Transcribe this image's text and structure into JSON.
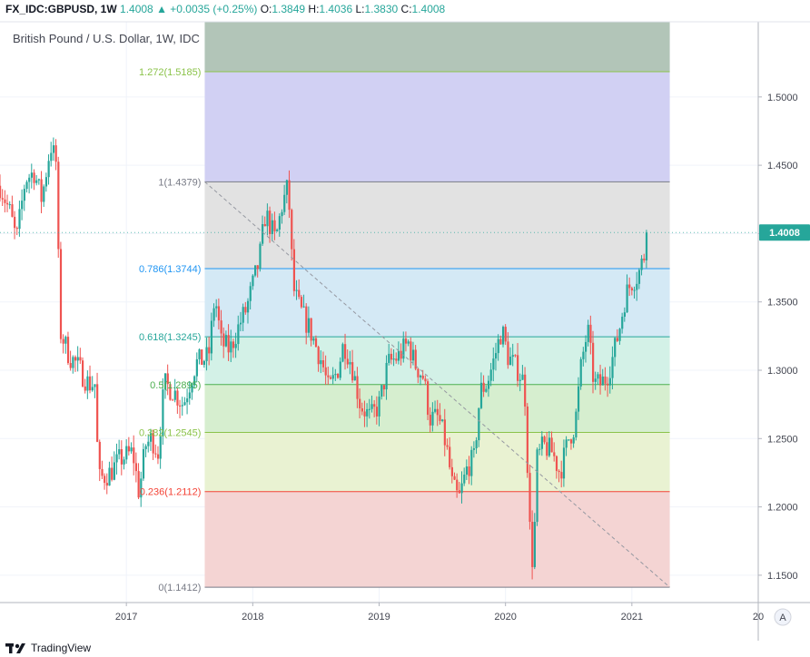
{
  "header": {
    "symbol": "FX_IDC:GBPUSD, 1W",
    "last": "1.4008",
    "change": "▲ +0.0035 (+0.25%)",
    "open_label": "O:",
    "open": "1.3849",
    "high_label": "H:",
    "high": "1.4036",
    "low_label": "L:",
    "low": "1.3830",
    "close_label": "C:",
    "close": "1.4008"
  },
  "brand": {
    "name": "TradingView",
    "icon": "tradingview-logo-icon"
  },
  "chart_data": {
    "type": "candlestick",
    "title": "British Pound / U.S. Dollar, 1W, IDC",
    "ylim": [
      1.13,
      1.555
    ],
    "yticks": [
      "1.1500",
      "1.2000",
      "1.2500",
      "1.3000",
      "1.3500",
      "1.4000",
      "1.4500",
      "1.5000"
    ],
    "xticks": [
      "2017",
      "2018",
      "2019",
      "2020",
      "2021",
      "20"
    ],
    "xlim": [
      2016.0,
      2022.0
    ],
    "grid": true,
    "last_price_label": "1.4008",
    "last_price": 1.4008,
    "axis_button": "A",
    "colors": {
      "up": "#26a69a",
      "down": "#ef5350",
      "last": "#26a69a"
    },
    "fib": {
      "x_start": 2017.62,
      "x_end": 2021.3,
      "trend_from": {
        "x": 2017.62,
        "y": 1.4379
      },
      "trend_to": {
        "x": 2021.3,
        "y": 1.1412
      },
      "top": 1.555,
      "levels": [
        {
          "label": "1.272(1.5185)",
          "value": 1.5185,
          "color": "#8bc34a"
        },
        {
          "label": "1(1.4379)",
          "value": 1.4379,
          "color": "#787b86"
        },
        {
          "label": "0.786(1.3744)",
          "value": 1.3744,
          "color": "#2196f3"
        },
        {
          "label": "0.618(1.3245)",
          "value": 1.3245,
          "color": "#26a69a"
        },
        {
          "label": "0.5(1.2895)",
          "value": 1.2895,
          "color": "#4caf50"
        },
        {
          "label": "0.382(1.2545)",
          "value": 1.2545,
          "color": "#8bc34a"
        },
        {
          "label": "0.236(1.2112)",
          "value": 1.2112,
          "color": "#f44336"
        },
        {
          "label": "0(1.1412)",
          "value": 1.1412,
          "color": "#787b86"
        }
      ],
      "bands": [
        {
          "from": 1.5185,
          "to": 1.555,
          "color": "#b2c5b8"
        },
        {
          "from": 1.4379,
          "to": 1.5185,
          "color": "#d1d0f3"
        },
        {
          "from": 1.3744,
          "to": 1.4379,
          "color": "#e2e2e2"
        },
        {
          "from": 1.3245,
          "to": 1.3744,
          "color": "#d4e9f5"
        },
        {
          "from": 1.2895,
          "to": 1.3245,
          "color": "#d3f1e7"
        },
        {
          "from": 1.2545,
          "to": 1.2895,
          "color": "#d6eecf"
        },
        {
          "from": 1.2112,
          "to": 1.2545,
          "color": "#e9f2d2"
        },
        {
          "from": 1.1412,
          "to": 1.2112,
          "color": "#f4d4d3"
        }
      ]
    },
    "ohlc_anchors": [
      [
        2016.0,
        1.435
      ],
      [
        2016.08,
        1.415
      ],
      [
        2016.13,
        1.395
      ],
      [
        2016.2,
        1.44
      ],
      [
        2016.27,
        1.445
      ],
      [
        2016.33,
        1.425
      ],
      [
        2016.4,
        1.465
      ],
      [
        2016.45,
        1.45
      ],
      [
        2016.47,
        1.33
      ],
      [
        2016.55,
        1.31
      ],
      [
        2016.6,
        1.305
      ],
      [
        2016.7,
        1.29
      ],
      [
        2016.75,
        1.29
      ],
      [
        2016.78,
        1.22
      ],
      [
        2016.87,
        1.225
      ],
      [
        2016.95,
        1.235
      ],
      [
        2017.05,
        1.24
      ],
      [
        2017.1,
        1.21
      ],
      [
        2017.15,
        1.245
      ],
      [
        2017.2,
        1.25
      ],
      [
        2017.25,
        1.24
      ],
      [
        2017.3,
        1.29
      ],
      [
        2017.37,
        1.285
      ],
      [
        2017.45,
        1.275
      ],
      [
        2017.55,
        1.305
      ],
      [
        2017.65,
        1.31
      ],
      [
        2017.7,
        1.355
      ],
      [
        2017.75,
        1.32
      ],
      [
        2017.82,
        1.315
      ],
      [
        2017.9,
        1.335
      ],
      [
        2017.95,
        1.345
      ],
      [
        2018.05,
        1.38
      ],
      [
        2018.1,
        1.415
      ],
      [
        2018.18,
        1.395
      ],
      [
        2018.23,
        1.42
      ],
      [
        2018.28,
        1.435
      ],
      [
        2018.32,
        1.36
      ],
      [
        2018.37,
        1.345
      ],
      [
        2018.45,
        1.33
      ],
      [
        2018.55,
        1.305
      ],
      [
        2018.6,
        1.285
      ],
      [
        2018.67,
        1.3
      ],
      [
        2018.72,
        1.32
      ],
      [
        2018.78,
        1.305
      ],
      [
        2018.85,
        1.275
      ],
      [
        2018.93,
        1.265
      ],
      [
        2019.0,
        1.275
      ],
      [
        2019.07,
        1.305
      ],
      [
        2019.15,
        1.31
      ],
      [
        2019.23,
        1.32
      ],
      [
        2019.28,
        1.305
      ],
      [
        2019.35,
        1.295
      ],
      [
        2019.4,
        1.265
      ],
      [
        2019.47,
        1.265
      ],
      [
        2019.53,
        1.245
      ],
      [
        2019.58,
        1.215
      ],
      [
        2019.63,
        1.205
      ],
      [
        2019.7,
        1.23
      ],
      [
        2019.75,
        1.235
      ],
      [
        2019.8,
        1.285
      ],
      [
        2019.85,
        1.29
      ],
      [
        2019.9,
        1.305
      ],
      [
        2019.97,
        1.33
      ],
      [
        2020.02,
        1.31
      ],
      [
        2020.1,
        1.3
      ],
      [
        2020.15,
        1.29
      ],
      [
        2020.2,
        1.165
      ],
      [
        2020.22,
        1.16
      ],
      [
        2020.25,
        1.235
      ],
      [
        2020.3,
        1.245
      ],
      [
        2020.37,
        1.24
      ],
      [
        2020.43,
        1.225
      ],
      [
        2020.5,
        1.25
      ],
      [
        2020.55,
        1.26
      ],
      [
        2020.6,
        1.305
      ],
      [
        2020.65,
        1.33
      ],
      [
        2020.7,
        1.29
      ],
      [
        2020.75,
        1.29
      ],
      [
        2020.8,
        1.295
      ],
      [
        2020.85,
        1.31
      ],
      [
        2020.9,
        1.33
      ],
      [
        2020.95,
        1.355
      ],
      [
        2021.0,
        1.365
      ],
      [
        2021.05,
        1.37
      ],
      [
        2021.1,
        1.385
      ],
      [
        2021.13,
        1.4008
      ]
    ]
  }
}
